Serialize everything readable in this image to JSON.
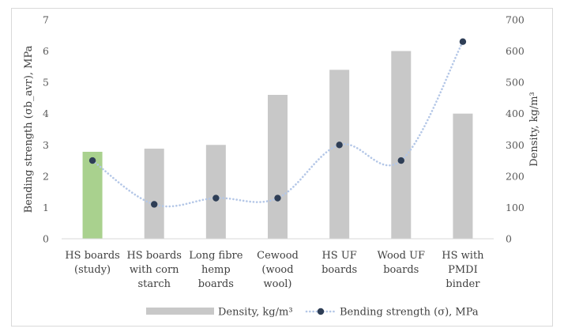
{
  "chart_data": {
    "type": "bar+line",
    "categories": [
      [
        "HS boards",
        "(study)"
      ],
      [
        "HS boards",
        "with corn",
        "starch"
      ],
      [
        "Long fibre",
        "hemp",
        "boards"
      ],
      [
        "Cewood",
        "(wood",
        "wool)"
      ],
      [
        "HS UF",
        "boards"
      ],
      [
        "Wood UF",
        "boards"
      ],
      [
        "HS with",
        "PMDI",
        "binder"
      ]
    ],
    "series": [
      {
        "name": "Density, kg/m³",
        "type": "bar",
        "axis": "right",
        "values": [
          278,
          288,
          300,
          460,
          540,
          600,
          400
        ],
        "colors": [
          "#a9d18e",
          "#c8c8c8",
          "#c8c8c8",
          "#c8c8c8",
          "#c8c8c8",
          "#c8c8c8",
          "#c8c8c8"
        ]
      },
      {
        "name": "Bending strength (σ), MPa",
        "type": "line",
        "axis": "left",
        "values": [
          2.5,
          1.1,
          1.3,
          1.3,
          3.0,
          2.5,
          6.3
        ],
        "color": "#2e3e56",
        "line_color": "#b4c7e7",
        "line_style": "dotted-smooth"
      }
    ],
    "y_left": {
      "label": "Bending strength (σb_avr), MPa",
      "min": 0,
      "max": 7,
      "ticks": [
        "0",
        "1",
        "2",
        "3",
        "4",
        "5",
        "6",
        "7"
      ]
    },
    "y_right": {
      "label": "Density, kg/m³",
      "min": 0,
      "max": 700,
      "ticks": [
        "0",
        "100",
        "200",
        "300",
        "400",
        "500",
        "600",
        "700"
      ]
    },
    "grid": false,
    "legend_position": "bottom"
  }
}
